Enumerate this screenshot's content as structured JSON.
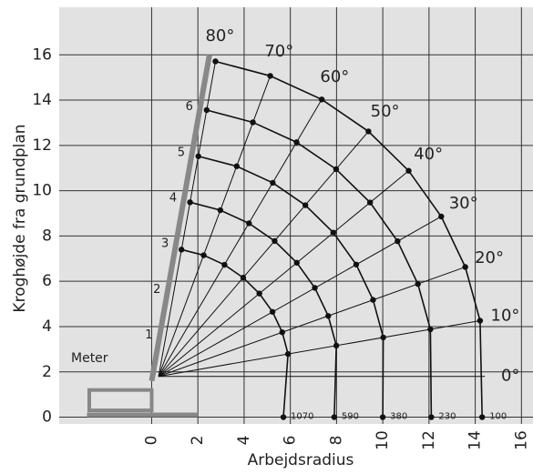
{
  "chart_data": {
    "type": "line",
    "x_label": "Arbejdsradius",
    "y_label": "Kroghøjde fra grundplan",
    "annotation": "Meter",
    "boom_sections": [
      "1",
      "2",
      "3",
      "4",
      "5",
      "6"
    ],
    "xlim": [
      -4,
      16.5
    ],
    "ylim": [
      -0.3,
      18.1
    ],
    "xticks": [
      0,
      2,
      4,
      6,
      8,
      10,
      12,
      14,
      16
    ],
    "yticks": [
      0,
      2,
      4,
      6,
      8,
      10,
      12,
      14,
      16
    ],
    "grid": true,
    "series": [
      {
        "color": "#111",
        "load": 1070,
        "x": [
          1.29,
          2.25,
          3.15,
          3.96,
          4.66,
          5.23,
          5.65,
          5.9,
          5.7
        ],
        "values": [
          7.4,
          7.15,
          6.73,
          6.16,
          5.46,
          4.65,
          3.75,
          2.79,
          0
        ]
      },
      {
        "color": "#111",
        "load": 590,
        "x": [
          1.66,
          2.97,
          4.21,
          5.32,
          6.28,
          7.06,
          7.64,
          7.99,
          7.9
        ],
        "values": [
          9.49,
          9.14,
          8.56,
          7.78,
          6.82,
          5.71,
          4.47,
          3.16,
          0
        ]
      },
      {
        "color": "#111",
        "load": 380,
        "x": [
          2.02,
          3.68,
          5.24,
          6.65,
          7.86,
          8.85,
          9.58,
          10.02,
          10
        ],
        "values": [
          11.52,
          11.08,
          10.35,
          9.36,
          8.15,
          6.74,
          5.18,
          3.52,
          0
        ]
      },
      {
        "color": "#111",
        "load": 230,
        "x": [
          2.38,
          4.38,
          6.27,
          7.98,
          9.45,
          10.64,
          11.52,
          12.06,
          12.1
        ],
        "values": [
          13.56,
          13.02,
          12.14,
          10.95,
          9.48,
          7.77,
          5.88,
          3.88,
          0
        ]
      },
      {
        "color": "#111",
        "load": 100,
        "x": [
          2.76,
          5.13,
          7.36,
          9.38,
          11.12,
          12.53,
          13.57,
          14.21,
          14.3
        ],
        "values": [
          15.71,
          15.07,
          14.03,
          12.62,
          10.88,
          8.86,
          6.63,
          4.26,
          0
        ]
      },
      {
        "name": "80°",
        "color": "#111",
        "x": [
          0.3,
          2.76
        ],
        "values": [
          1.8,
          15.71
        ]
      },
      {
        "name": "70°",
        "color": "#111",
        "x": [
          0.3,
          5.13
        ],
        "values": [
          1.8,
          15.07
        ]
      },
      {
        "name": "60°",
        "color": "#111",
        "x": [
          0.3,
          7.36
        ],
        "values": [
          1.8,
          14.03
        ]
      },
      {
        "name": "50°",
        "color": "#111",
        "x": [
          0.3,
          9.38
        ],
        "values": [
          1.8,
          12.62
        ]
      },
      {
        "name": "40°",
        "color": "#111",
        "x": [
          0.3,
          11.12
        ],
        "values": [
          1.8,
          10.88
        ]
      },
      {
        "name": "30°",
        "color": "#111",
        "x": [
          0.3,
          12.53
        ],
        "values": [
          1.8,
          8.86
        ]
      },
      {
        "name": "20°",
        "color": "#111",
        "x": [
          0.3,
          13.57
        ],
        "values": [
          1.8,
          6.63
        ]
      },
      {
        "name": "10°",
        "color": "#111",
        "x": [
          0.3,
          14.21
        ],
        "values": [
          1.8,
          4.26
        ]
      },
      {
        "name": "0°",
        "color": "#111",
        "x": [
          0.3,
          14.42
        ],
        "values": [
          1.8,
          1.8
        ]
      }
    ]
  }
}
